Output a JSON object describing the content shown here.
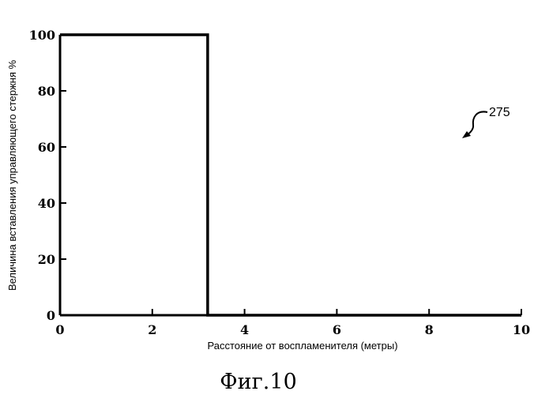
{
  "chart_data": {
    "type": "line",
    "title": "",
    "xlabel": "Расстояние от воспламенителя (метры)",
    "ylabel": "Величина вставления управляющего стержня %",
    "xlim": [
      0,
      10
    ],
    "ylim": [
      0,
      100
    ],
    "xticks": [
      0,
      2,
      4,
      6,
      8,
      10
    ],
    "yticks": [
      0,
      20,
      40,
      60,
      80,
      100
    ],
    "grid": false,
    "series": [
      {
        "x": [
          0,
          3.2,
          3.2,
          10
        ],
        "y": [
          100,
          100,
          0,
          0
        ]
      }
    ],
    "annotation": {
      "text": "275"
    }
  },
  "caption": "Фиг.10"
}
